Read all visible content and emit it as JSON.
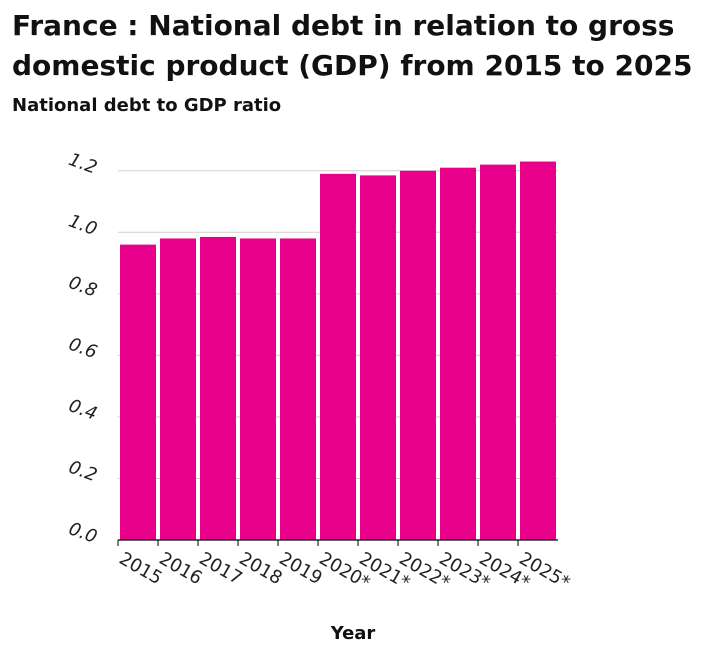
{
  "chart_data": {
    "type": "bar",
    "title": "France : National debt in relation to gross domestic product (GDP) from 2015 to 2025",
    "ylabel": "National debt to GDP ratio",
    "xlabel": "Year",
    "categories": [
      "2015",
      "2016",
      "2017",
      "2018",
      "2019",
      "2020*",
      "2021*",
      "2022*",
      "2023*",
      "2024*",
      "2025*"
    ],
    "values": [
      0.96,
      0.98,
      0.985,
      0.98,
      0.98,
      1.19,
      1.185,
      1.2,
      1.21,
      1.22,
      1.23
    ],
    "yticks": [
      "0.0",
      "0.2",
      "0.4",
      "0.6",
      "0.8",
      "1.0",
      "1.2"
    ],
    "ylim": [
      0,
      1.3
    ],
    "grid": true,
    "bar_color": "#e8008a"
  }
}
